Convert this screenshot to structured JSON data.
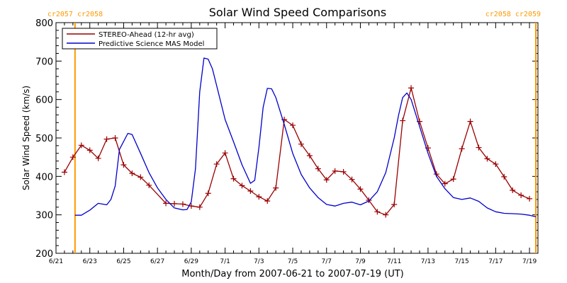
{
  "chart_data": {
    "type": "line",
    "title": "Solar Wind Speed Comparisons",
    "xlabel": "Month/Day from 2007-06-21 to 2007-07-19 (UT)",
    "ylabel": "Solar Wind Speed (km/s)",
    "xlim": [
      "2007-06-21",
      "2007-07-19T12:00"
    ],
    "ylim": [
      200,
      800
    ],
    "y_ticks": [
      200,
      300,
      400,
      500,
      600,
      700,
      800
    ],
    "x_ticks": [
      {
        "date": "2007-06-21",
        "label": "6/21"
      },
      {
        "date": "2007-06-23",
        "label": "6/23"
      },
      {
        "date": "2007-06-25",
        "label": "6/25"
      },
      {
        "date": "2007-06-27",
        "label": "6/27"
      },
      {
        "date": "2007-06-29",
        "label": "6/29"
      },
      {
        "date": "2007-07-01",
        "label": "7/1"
      },
      {
        "date": "2007-07-03",
        "label": "7/3"
      },
      {
        "date": "2007-07-05",
        "label": "7/5"
      },
      {
        "date": "2007-07-07",
        "label": "7/7"
      },
      {
        "date": "2007-07-09",
        "label": "7/9"
      },
      {
        "date": "2007-07-11",
        "label": "7/11"
      },
      {
        "date": "2007-07-13",
        "label": "7/13"
      },
      {
        "date": "2007-07-15",
        "label": "7/15"
      },
      {
        "date": "2007-07-17",
        "label": "7/17"
      },
      {
        "date": "2007-07-19",
        "label": "7/19"
      }
    ],
    "legend_position": "top-left",
    "grid": false,
    "markers": [
      {
        "date": "2007-06-22T03:00",
        "label": "cr2057 cr2058",
        "label_align": "left",
        "color": "#ff9900"
      },
      {
        "date": "2007-07-19T09:00",
        "label": "cr2058 cr2059",
        "label_align": "right",
        "color": "#ff9900"
      }
    ],
    "series": [
      {
        "name": "STEREO-Ahead (12-hr avg)",
        "color": "#990000",
        "marker": "+",
        "points": [
          [
            "2007-06-21T12:00",
            411
          ],
          [
            "2007-06-22T00:00",
            450
          ],
          [
            "2007-06-22T12:00",
            481
          ],
          [
            "2007-06-23T00:00",
            468
          ],
          [
            "2007-06-23T12:00",
            447
          ],
          [
            "2007-06-24T00:00",
            497
          ],
          [
            "2007-06-24T12:00",
            500
          ],
          [
            "2007-06-25T00:00",
            430
          ],
          [
            "2007-06-25T12:00",
            408
          ],
          [
            "2007-06-26T00:00",
            398
          ],
          [
            "2007-06-26T12:00",
            377
          ],
          [
            "2007-06-27T12:00",
            330
          ],
          [
            "2007-06-28T00:00",
            329
          ],
          [
            "2007-06-28T12:00",
            328
          ],
          [
            "2007-06-29T00:00",
            323
          ],
          [
            "2007-06-29T12:00",
            320
          ],
          [
            "2007-06-30T00:00",
            356
          ],
          [
            "2007-06-30T12:00",
            432
          ],
          [
            "2007-07-01T00:00",
            461
          ],
          [
            "2007-07-01T12:00",
            394
          ],
          [
            "2007-07-02T00:00",
            376
          ],
          [
            "2007-07-02T12:00",
            362
          ],
          [
            "2007-07-03T00:00",
            347
          ],
          [
            "2007-07-03T12:00",
            336
          ],
          [
            "2007-07-04T00:00",
            370
          ],
          [
            "2007-07-04T12:00",
            548
          ],
          [
            "2007-07-05T00:00",
            533
          ],
          [
            "2007-07-05T12:00",
            484
          ],
          [
            "2007-07-06T00:00",
            454
          ],
          [
            "2007-07-06T12:00",
            420
          ],
          [
            "2007-07-07T00:00",
            391
          ],
          [
            "2007-07-07T12:00",
            414
          ],
          [
            "2007-07-08T00:00",
            412
          ],
          [
            "2007-07-08T12:00",
            392
          ],
          [
            "2007-07-09T00:00",
            367
          ],
          [
            "2007-07-09T12:00",
            338
          ],
          [
            "2007-07-10T00:00",
            308
          ],
          [
            "2007-07-10T12:00",
            300
          ],
          [
            "2007-07-11T00:00",
            327
          ],
          [
            "2007-07-11T12:00",
            545
          ],
          [
            "2007-07-12T00:00",
            630
          ],
          [
            "2007-07-12T12:00",
            543
          ],
          [
            "2007-07-13T00:00",
            474
          ],
          [
            "2007-07-13T12:00",
            406
          ],
          [
            "2007-07-14T00:00",
            381
          ],
          [
            "2007-07-14T12:00",
            393
          ],
          [
            "2007-07-15T00:00",
            472
          ],
          [
            "2007-07-15T12:00",
            543
          ],
          [
            "2007-07-16T00:00",
            475
          ],
          [
            "2007-07-16T12:00",
            446
          ],
          [
            "2007-07-17T00:00",
            432
          ],
          [
            "2007-07-17T12:00",
            399
          ],
          [
            "2007-07-18T00:00",
            364
          ],
          [
            "2007-07-18T12:00",
            351
          ],
          [
            "2007-07-19T00:00",
            342
          ]
        ]
      },
      {
        "name": "Predictive Science MAS Model",
        "color": "#0000cc",
        "marker": "none",
        "points": [
          [
            "2007-06-22T03:00",
            299
          ],
          [
            "2007-06-22T12:00",
            299
          ],
          [
            "2007-06-23T00:00",
            312
          ],
          [
            "2007-06-23T12:00",
            330
          ],
          [
            "2007-06-24T00:00",
            326
          ],
          [
            "2007-06-24T06:00",
            340
          ],
          [
            "2007-06-24T12:00",
            375
          ],
          [
            "2007-06-24T18:00",
            470
          ],
          [
            "2007-06-25T06:00",
            512
          ],
          [
            "2007-06-25T12:00",
            509
          ],
          [
            "2007-06-26T00:00",
            460
          ],
          [
            "2007-06-26T12:00",
            410
          ],
          [
            "2007-06-27T00:00",
            370
          ],
          [
            "2007-06-27T12:00",
            340
          ],
          [
            "2007-06-28T00:00",
            318
          ],
          [
            "2007-06-28T12:00",
            313
          ],
          [
            "2007-06-28T18:00",
            314
          ],
          [
            "2007-06-29T00:00",
            334
          ],
          [
            "2007-06-29T06:00",
            420
          ],
          [
            "2007-06-29T12:00",
            620
          ],
          [
            "2007-06-29T18:00",
            708
          ],
          [
            "2007-06-30T00:00",
            705
          ],
          [
            "2007-06-30T06:00",
            680
          ],
          [
            "2007-06-30T12:00",
            636
          ],
          [
            "2007-07-01T00:00",
            548
          ],
          [
            "2007-07-01T12:00",
            490
          ],
          [
            "2007-07-02T00:00",
            430
          ],
          [
            "2007-07-02T12:00",
            382
          ],
          [
            "2007-07-02T18:00",
            390
          ],
          [
            "2007-07-03T00:00",
            475
          ],
          [
            "2007-07-03T06:00",
            580
          ],
          [
            "2007-07-03T12:00",
            629
          ],
          [
            "2007-07-03T18:00",
            628
          ],
          [
            "2007-07-04T00:00",
            605
          ],
          [
            "2007-07-04T12:00",
            535
          ],
          [
            "2007-07-05T00:00",
            460
          ],
          [
            "2007-07-05T12:00",
            405
          ],
          [
            "2007-07-06T00:00",
            370
          ],
          [
            "2007-07-06T12:00",
            345
          ],
          [
            "2007-07-07T00:00",
            327
          ],
          [
            "2007-07-07T12:00",
            323
          ],
          [
            "2007-07-08T00:00",
            330
          ],
          [
            "2007-07-08T12:00",
            333
          ],
          [
            "2007-07-09T00:00",
            326
          ],
          [
            "2007-07-09T12:00",
            336
          ],
          [
            "2007-07-10T00:00",
            360
          ],
          [
            "2007-07-10T12:00",
            410
          ],
          [
            "2007-07-11T00:00",
            500
          ],
          [
            "2007-07-11T06:00",
            558
          ],
          [
            "2007-07-11T12:00",
            605
          ],
          [
            "2007-07-11T18:00",
            617
          ],
          [
            "2007-07-12T00:00",
            600
          ],
          [
            "2007-07-12T12:00",
            530
          ],
          [
            "2007-07-13T00:00",
            460
          ],
          [
            "2007-07-13T12:00",
            400
          ],
          [
            "2007-07-14T00:00",
            368
          ],
          [
            "2007-07-14T12:00",
            345
          ],
          [
            "2007-07-15T00:00",
            340
          ],
          [
            "2007-07-15T12:00",
            344
          ],
          [
            "2007-07-16T00:00",
            335
          ],
          [
            "2007-07-16T12:00",
            318
          ],
          [
            "2007-07-17T00:00",
            308
          ],
          [
            "2007-07-17T12:00",
            304
          ],
          [
            "2007-07-18T00:00",
            303
          ],
          [
            "2007-07-18T12:00",
            302
          ],
          [
            "2007-07-19T00:00",
            299
          ],
          [
            "2007-07-19T09:00",
            295
          ]
        ]
      }
    ]
  }
}
